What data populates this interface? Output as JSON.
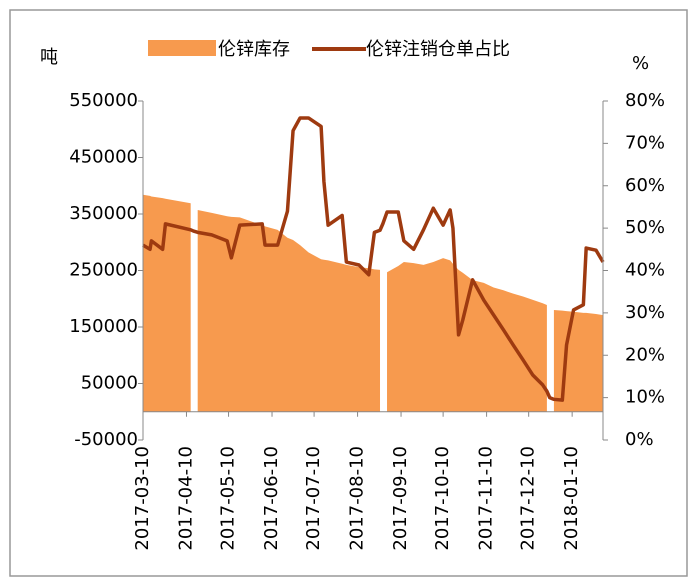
{
  "chart_data": {
    "type": "area-line",
    "left_axis_label": "吨",
    "right_axis_label": "%",
    "x": [
      "2017-03-10",
      "2017-03-15",
      "2017-03-16",
      "2017-03-24",
      "2017-03-26",
      "2017-04-13",
      "2017-04-15",
      "2017-04-18",
      "2017-04-28",
      "2017-05-09",
      "2017-05-12",
      "2017-05-18",
      "2017-06-03",
      "2017-06-05",
      "2017-06-14",
      "2017-06-21",
      "2017-06-25",
      "2017-06-30",
      "2017-07-06",
      "2017-07-15",
      "2017-07-17",
      "2017-07-20",
      "2017-07-30",
      "2017-08-02",
      "2017-08-11",
      "2017-08-18",
      "2017-08-22",
      "2017-08-26",
      "2017-08-28",
      "2017-08-31",
      "2017-09-08",
      "2017-09-12",
      "2017-09-19",
      "2017-09-26",
      "2017-10-03",
      "2017-10-10",
      "2017-10-15",
      "2017-10-17",
      "2017-10-21",
      "2017-10-24",
      "2017-10-31",
      "2017-11-08",
      "2017-11-15",
      "2017-11-22",
      "2017-11-29",
      "2017-12-06",
      "2017-12-13",
      "2017-12-20",
      "2017-12-23",
      "2017-12-25",
      "2017-12-28",
      "2018-01-03",
      "2018-01-06",
      "2018-01-11",
      "2018-01-18",
      "2018-01-20",
      "2018-01-27",
      "2018-02-01"
    ],
    "series": [
      {
        "name": "伦锌库存",
        "kind": "area",
        "color": "#f79a4e",
        "values": [
          384000,
          382000,
          381000,
          378000,
          377000,
          369000,
          null,
          357000,
          352000,
          346000,
          345000,
          344000,
          330000,
          328000,
          322000,
          308000,
          304000,
          295000,
          282000,
          270000,
          269000,
          268000,
          262000,
          260000,
          256000,
          254000,
          252000,
          251000,
          null,
          247000,
          258000,
          265000,
          263000,
          260000,
          265000,
          272000,
          268000,
          262000,
          251000,
          246000,
          233000,
          228000,
          220000,
          215000,
          209000,
          204000,
          198000,
          192000,
          189000,
          null,
          180000,
          179000,
          178000,
          177000,
          175000,
          175000,
          173000,
          171000
        ]
      },
      {
        "name": "伦锌注销仓单占比",
        "kind": "line",
        "axis": "y2",
        "color": "#9e3a10",
        "values": [
          46,
          45,
          47,
          45,
          51,
          49.6,
          49.3,
          49,
          48.4,
          47,
          43,
          50.7,
          51,
          46,
          46,
          54,
          73,
          76,
          76,
          74,
          61,
          50.7,
          53,
          42,
          41.3,
          39,
          49,
          49.5,
          51,
          53.8,
          53.8,
          47,
          45,
          49.6,
          54.7,
          50.7,
          54.3,
          50,
          24.8,
          28.3,
          37.8,
          33,
          29.5,
          26,
          22.4,
          18.9,
          15.3,
          13,
          11.5,
          10,
          9.6,
          9.4,
          22.4,
          30.7,
          31.9,
          45.3,
          44.8,
          42
        ]
      }
    ],
    "xlim": [
      "2017-03-10",
      "2018-02-01"
    ],
    "xticks": [
      "2017-03-10",
      "2017-04-10",
      "2017-05-10",
      "2017-06-10",
      "2017-07-10",
      "2017-08-10",
      "2017-09-10",
      "2017-10-10",
      "2017-11-10",
      "2017-12-10",
      "2018-01-10"
    ],
    "ylim": [
      -50000,
      550000
    ],
    "yticks": [
      -50000,
      50000,
      150000,
      250000,
      350000,
      450000,
      550000
    ],
    "y2lim": [
      0,
      80
    ],
    "y2ticks": [
      {
        "value": 0,
        "label": "0%"
      },
      {
        "value": 10,
        "label": "10%"
      },
      {
        "value": 20,
        "label": "20%"
      },
      {
        "value": 30,
        "label": "30%"
      },
      {
        "value": 40,
        "label": "40%"
      },
      {
        "value": 50,
        "label": "50%"
      },
      {
        "value": 60,
        "label": "60%"
      },
      {
        "value": 70,
        "label": "70%"
      },
      {
        "value": 80,
        "label": "80%"
      }
    ]
  }
}
